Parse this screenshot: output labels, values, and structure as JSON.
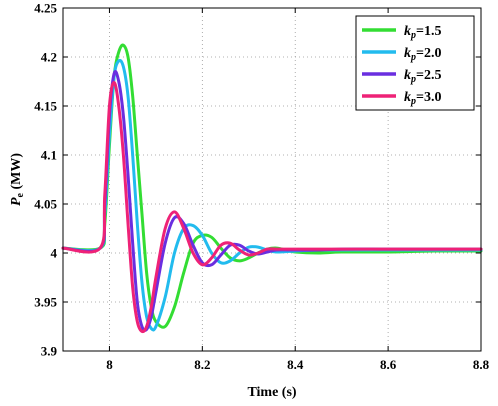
{
  "chart_data": {
    "type": "line",
    "title": "",
    "xlabel": "Time (s)",
    "ylabel": {
      "main": "P",
      "sub": "e",
      "unit": " (MW)"
    },
    "xlim": [
      7.9,
      8.8
    ],
    "ylim": [
      3.9,
      4.25
    ],
    "grid": true,
    "legend_position": "top-right",
    "x_ticks": [
      {
        "value": 8.0,
        "label": "8"
      },
      {
        "value": 8.2,
        "label": "8.2"
      },
      {
        "value": 8.4,
        "label": "8.4"
      },
      {
        "value": 8.6,
        "label": "8.6"
      },
      {
        "value": 8.8,
        "label": "8.8"
      }
    ],
    "y_ticks": [
      {
        "value": 3.9,
        "label": "3.9"
      },
      {
        "value": 3.95,
        "label": "3.95"
      },
      {
        "value": 4.0,
        "label": "4"
      },
      {
        "value": 4.05,
        "label": "4.05"
      },
      {
        "value": 4.1,
        "label": "4.1"
      },
      {
        "value": 4.15,
        "label": "4.15"
      },
      {
        "value": 4.2,
        "label": "4.2"
      },
      {
        "value": 4.25,
        "label": "4.25"
      }
    ],
    "series": [
      {
        "legend": {
          "k": "k",
          "sub": "p",
          "value": "=1.5"
        },
        "color": "#33dd33",
        "x": [
          7.9,
          7.98,
          7.99,
          8.0,
          8.01,
          8.02,
          8.03,
          8.04,
          8.05,
          8.06,
          8.07,
          8.08,
          8.09,
          8.1,
          8.12,
          8.14,
          8.16,
          8.18,
          8.2,
          8.22,
          8.24,
          8.26,
          8.28,
          8.3,
          8.32,
          8.34,
          8.36,
          8.38,
          8.4,
          8.45,
          8.5,
          8.6,
          8.7,
          8.8
        ],
        "y": [
          4.005,
          4.005,
          4.03,
          4.11,
          4.18,
          4.205,
          4.212,
          4.2,
          4.16,
          4.1,
          4.04,
          3.98,
          3.945,
          3.93,
          3.925,
          3.945,
          3.98,
          4.01,
          4.018,
          4.016,
          4.005,
          3.995,
          3.992,
          3.995,
          4.0,
          4.004,
          4.005,
          4.003,
          4.001,
          4.0,
          4.001,
          4.001,
          4.002,
          4.002
        ]
      },
      {
        "legend": {
          "k": "k",
          "sub": "p",
          "value": "=2.0"
        },
        "color": "#22bbee",
        "x": [
          7.9,
          7.98,
          7.99,
          8.0,
          8.01,
          8.02,
          8.03,
          8.04,
          8.05,
          8.06,
          8.07,
          8.08,
          8.09,
          8.1,
          8.12,
          8.14,
          8.16,
          8.18,
          8.2,
          8.22,
          8.24,
          8.26,
          8.28,
          8.3,
          8.32,
          8.34,
          8.36,
          8.4,
          8.45,
          8.5,
          8.6,
          8.7,
          8.8
        ],
        "y": [
          4.005,
          4.005,
          4.04,
          4.12,
          4.18,
          4.196,
          4.19,
          4.16,
          4.1,
          4.03,
          3.97,
          3.935,
          3.923,
          3.925,
          3.955,
          4.0,
          4.025,
          4.028,
          4.018,
          4.0,
          3.99,
          3.992,
          4.0,
          4.006,
          4.006,
          4.003,
          4.001,
          4.002,
          4.003,
          4.003,
          4.003,
          4.003,
          4.003
        ]
      },
      {
        "legend": {
          "k": "k",
          "sub": "p",
          "value": "=2.5"
        },
        "color": "#6a2ee0",
        "x": [
          7.9,
          7.98,
          7.99,
          8.0,
          8.01,
          8.02,
          8.03,
          8.04,
          8.05,
          8.06,
          8.07,
          8.08,
          8.09,
          8.1,
          8.12,
          8.14,
          8.16,
          8.18,
          8.2,
          8.22,
          8.24,
          8.26,
          8.28,
          8.3,
          8.32,
          8.34,
          8.36,
          8.4,
          8.45,
          8.5,
          8.6,
          8.7,
          8.8
        ],
        "y": [
          4.005,
          4.005,
          4.05,
          4.14,
          4.183,
          4.175,
          4.14,
          4.08,
          4.01,
          3.95,
          3.925,
          3.922,
          3.935,
          3.96,
          4.01,
          4.036,
          4.03,
          4.008,
          3.99,
          3.988,
          3.998,
          4.008,
          4.008,
          4.002,
          3.999,
          4.001,
          4.003,
          4.003,
          4.003,
          4.004,
          4.004,
          4.004,
          4.004
        ]
      },
      {
        "legend": {
          "k": "k",
          "sub": "p",
          "value": "=3.0"
        },
        "color": "#ee2277",
        "x": [
          7.9,
          7.98,
          7.99,
          8.0,
          8.01,
          8.02,
          8.03,
          8.04,
          8.05,
          8.06,
          8.07,
          8.08,
          8.09,
          8.1,
          8.12,
          8.14,
          8.16,
          8.18,
          8.2,
          8.22,
          8.24,
          8.26,
          8.28,
          8.3,
          8.32,
          8.34,
          8.36,
          8.4,
          8.45,
          8.5,
          8.6,
          8.7,
          8.8
        ],
        "y": [
          4.005,
          4.005,
          4.06,
          4.15,
          4.174,
          4.15,
          4.1,
          4.03,
          3.965,
          3.93,
          3.92,
          3.925,
          3.945,
          3.975,
          4.025,
          4.042,
          4.025,
          4.0,
          3.988,
          3.995,
          4.008,
          4.01,
          4.003,
          3.998,
          4.0,
          4.004,
          4.004,
          4.004,
          4.004,
          4.004,
          4.004,
          4.004,
          4.004
        ]
      }
    ]
  }
}
